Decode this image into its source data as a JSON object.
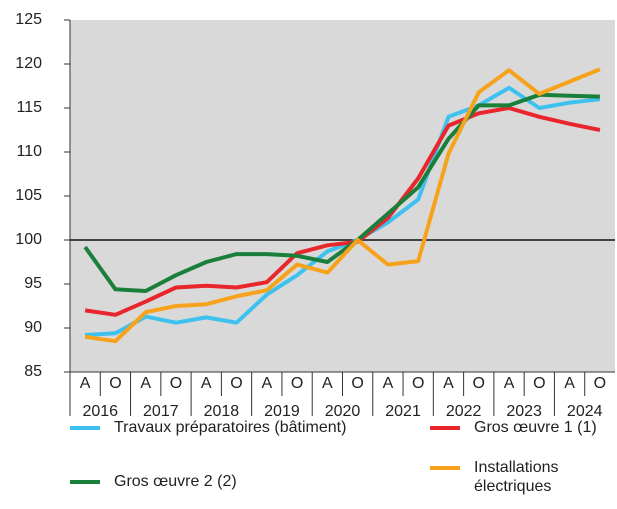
{
  "chart_data": {
    "type": "line",
    "categories": [
      "A",
      "O",
      "A",
      "O",
      "A",
      "O",
      "A",
      "O",
      "A",
      "O",
      "A",
      "O",
      "A",
      "O",
      "A",
      "O",
      "A",
      "O"
    ],
    "years": [
      "2016",
      "2017",
      "2018",
      "2019",
      "2020",
      "2021",
      "2022",
      "2023",
      "2024"
    ],
    "ylim": [
      85,
      125
    ],
    "yticks": [
      85,
      90,
      95,
      100,
      105,
      110,
      115,
      120,
      125
    ],
    "reference_line": 100,
    "background": "#d9d9d9",
    "series": [
      {
        "name": "Travaux préparatoires (bâtiment)",
        "color": "#3ec1ef",
        "values": [
          89.2,
          89.4,
          91.3,
          90.6,
          91.2,
          90.6,
          93.8,
          96.0,
          98.7,
          100.0,
          102.0,
          104.6,
          114.0,
          115.3,
          117.3,
          115.0,
          115.6,
          116.0
        ]
      },
      {
        "name": "Gros œuvre 1 (1)",
        "color": "#e8262b",
        "values": [
          92.0,
          91.5,
          93.0,
          94.6,
          94.8,
          94.6,
          95.2,
          98.5,
          99.4,
          99.8,
          102.5,
          107.0,
          113.0,
          114.4,
          115.0,
          114.0,
          113.2,
          112.5
        ]
      },
      {
        "name": "Gros œuvre 2 (2)",
        "color": "#1a7f3a",
        "values": [
          99.2,
          94.4,
          94.2,
          96.0,
          97.5,
          98.4,
          98.4,
          98.2,
          97.5,
          100.0,
          103.0,
          106.0,
          111.5,
          115.3,
          115.3,
          116.5,
          116.4,
          116.3
        ]
      },
      {
        "name": "Installations électriques",
        "color": "#f7a21b",
        "values": [
          89.0,
          88.5,
          91.8,
          92.5,
          92.7,
          93.6,
          94.3,
          97.2,
          96.3,
          100.0,
          97.2,
          97.6,
          109.8,
          116.8,
          119.3,
          116.6,
          118.0,
          119.4
        ]
      }
    ]
  }
}
